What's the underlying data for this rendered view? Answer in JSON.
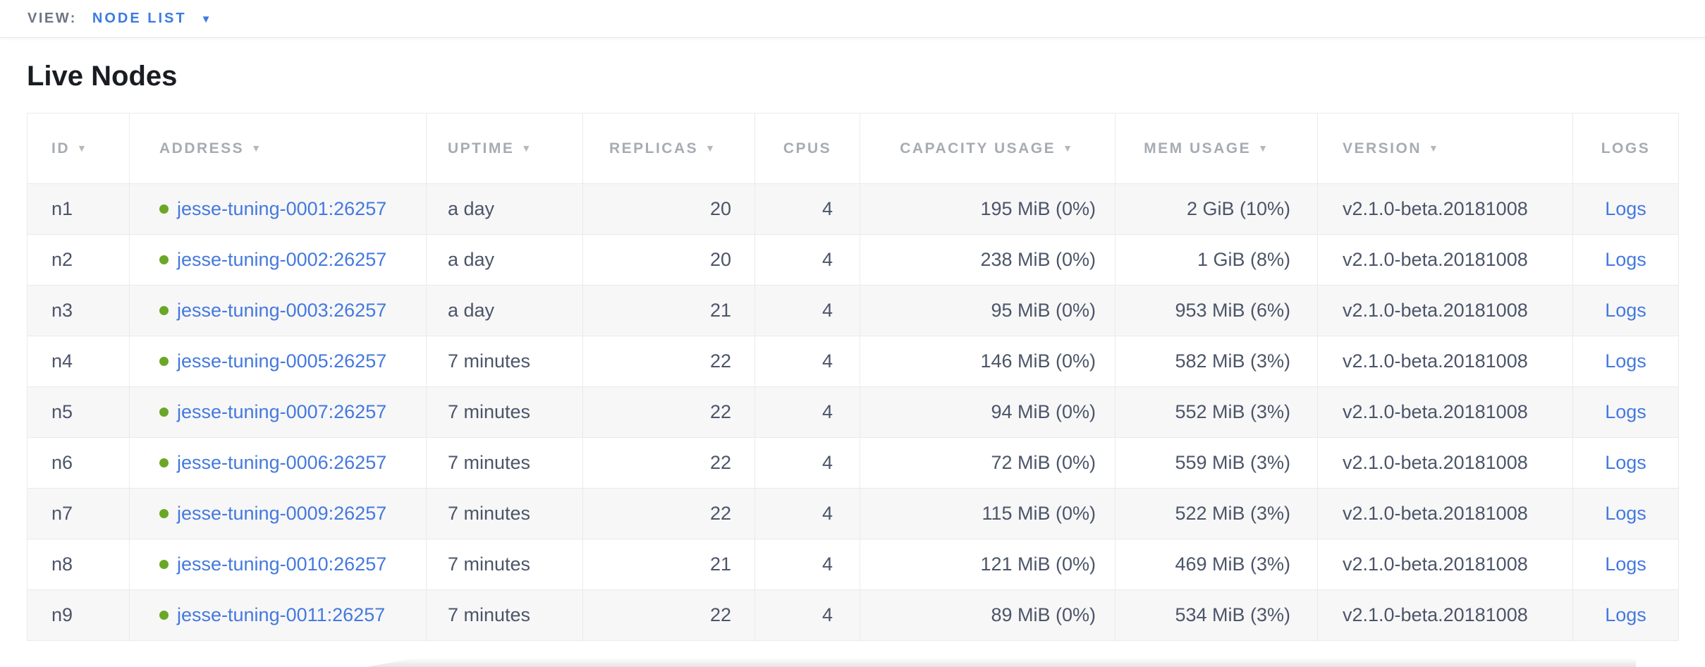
{
  "view_bar": {
    "label": "VIEW:",
    "value": "NODE LIST"
  },
  "page": {
    "title": "Live Nodes"
  },
  "icons": {
    "sort_desc": "▼",
    "dropdown_caret": "▼",
    "live_status_dot": "green-circle"
  },
  "colors": {
    "link_blue": "#4479de",
    "accent_blue": "#3c7be0",
    "live_green": "#6aa726",
    "header_gray": "#a7acb3",
    "text_slate": "#4c5568",
    "row_stripe": "#f7f7f8"
  },
  "table": {
    "columns": [
      {
        "key": "id",
        "label": "ID",
        "sortable": true,
        "align": "left"
      },
      {
        "key": "address",
        "label": "ADDRESS",
        "sortable": true,
        "align": "left"
      },
      {
        "key": "uptime",
        "label": "UPTIME",
        "sortable": true,
        "align": "left"
      },
      {
        "key": "replicas",
        "label": "REPLICAS",
        "sortable": true,
        "align": "right"
      },
      {
        "key": "cpus",
        "label": "CPUS",
        "sortable": false,
        "align": "center"
      },
      {
        "key": "capacity",
        "label": "CAPACITY USAGE",
        "sortable": true,
        "align": "right"
      },
      {
        "key": "mem",
        "label": "MEM USAGE",
        "sortable": true,
        "align": "right"
      },
      {
        "key": "version",
        "label": "VERSION",
        "sortable": true,
        "align": "left"
      },
      {
        "key": "logs",
        "label": "LOGS",
        "sortable": false,
        "align": "center"
      }
    ],
    "rows": [
      {
        "id": "n1",
        "address": "jesse-tuning-0001:26257",
        "uptime": "a day",
        "replicas": "20",
        "cpus": "4",
        "capacity": "195 MiB (0%)",
        "mem": "2 GiB (10%)",
        "version": "v2.1.0-beta.20181008",
        "logs": "Logs"
      },
      {
        "id": "n2",
        "address": "jesse-tuning-0002:26257",
        "uptime": "a day",
        "replicas": "20",
        "cpus": "4",
        "capacity": "238 MiB (0%)",
        "mem": "1 GiB (8%)",
        "version": "v2.1.0-beta.20181008",
        "logs": "Logs"
      },
      {
        "id": "n3",
        "address": "jesse-tuning-0003:26257",
        "uptime": "a day",
        "replicas": "21",
        "cpus": "4",
        "capacity": "95 MiB (0%)",
        "mem": "953 MiB (6%)",
        "version": "v2.1.0-beta.20181008",
        "logs": "Logs"
      },
      {
        "id": "n4",
        "address": "jesse-tuning-0005:26257",
        "uptime": "7 minutes",
        "replicas": "22",
        "cpus": "4",
        "capacity": "146 MiB (0%)",
        "mem": "582 MiB (3%)",
        "version": "v2.1.0-beta.20181008",
        "logs": "Logs"
      },
      {
        "id": "n5",
        "address": "jesse-tuning-0007:26257",
        "uptime": "7 minutes",
        "replicas": "22",
        "cpus": "4",
        "capacity": "94 MiB (0%)",
        "mem": "552 MiB (3%)",
        "version": "v2.1.0-beta.20181008",
        "logs": "Logs"
      },
      {
        "id": "n6",
        "address": "jesse-tuning-0006:26257",
        "uptime": "7 minutes",
        "replicas": "22",
        "cpus": "4",
        "capacity": "72 MiB (0%)",
        "mem": "559 MiB (3%)",
        "version": "v2.1.0-beta.20181008",
        "logs": "Logs"
      },
      {
        "id": "n7",
        "address": "jesse-tuning-0009:26257",
        "uptime": "7 minutes",
        "replicas": "22",
        "cpus": "4",
        "capacity": "115 MiB (0%)",
        "mem": "522 MiB (3%)",
        "version": "v2.1.0-beta.20181008",
        "logs": "Logs"
      },
      {
        "id": "n8",
        "address": "jesse-tuning-0010:26257",
        "uptime": "7 minutes",
        "replicas": "21",
        "cpus": "4",
        "capacity": "121 MiB (0%)",
        "mem": "469 MiB (3%)",
        "version": "v2.1.0-beta.20181008",
        "logs": "Logs"
      },
      {
        "id": "n9",
        "address": "jesse-tuning-0011:26257",
        "uptime": "7 minutes",
        "replicas": "22",
        "cpus": "4",
        "capacity": "89 MiB (0%)",
        "mem": "534 MiB (3%)",
        "version": "v2.1.0-beta.20181008",
        "logs": "Logs"
      }
    ]
  }
}
